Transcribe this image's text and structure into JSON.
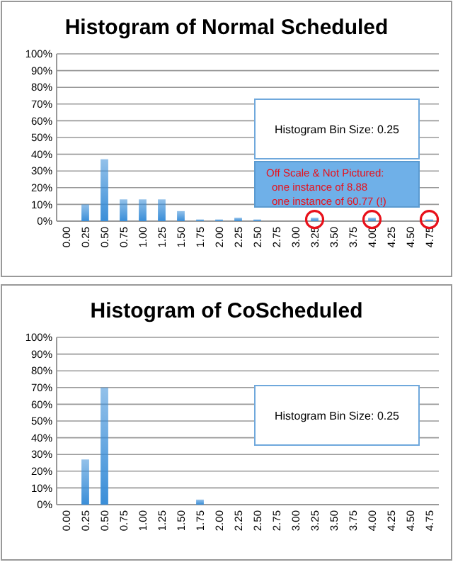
{
  "chart_data": [
    {
      "type": "bar",
      "title": "Histogram of Normal Scheduled",
      "categories": [
        "0.00",
        "0.25",
        "0.50",
        "0.75",
        "1.00",
        "1.25",
        "1.50",
        "1.75",
        "2.00",
        "2.25",
        "2.50",
        "2.75",
        "3.00",
        "3.25",
        "3.50",
        "3.75",
        "4.00",
        "4.25",
        "4.50",
        "4.75"
      ],
      "series": [
        {
          "values": [
            0,
            10,
            37,
            13,
            13,
            13,
            6,
            1,
            1,
            2,
            1,
            0,
            0,
            2,
            0,
            0,
            2,
            0,
            0,
            1
          ],
          "color": "#3a8ed8"
        },
        {
          "type": "scatter",
          "x": [
            "3.25",
            "4.00",
            "4.75"
          ],
          "values": [
            1,
            1,
            1
          ],
          "color": "#e8101a",
          "marker": "circle"
        }
      ],
      "ylim": [
        0,
        100
      ],
      "yticks": [
        {
          "value": 0,
          "label": "0%"
        },
        {
          "value": 10,
          "label": "10%"
        },
        {
          "value": 20,
          "label": "20%"
        },
        {
          "value": 30,
          "label": "30%"
        },
        {
          "value": 40,
          "label": "40%"
        },
        {
          "value": 50,
          "label": "50%"
        },
        {
          "value": 60,
          "label": "60%"
        },
        {
          "value": 70,
          "label": "70%"
        },
        {
          "value": 80,
          "label": "80%"
        },
        {
          "value": 90,
          "label": "90%"
        },
        {
          "value": 100,
          "label": "100%"
        }
      ],
      "grid": "y",
      "annotations": [
        "Histogram Bin Size: 0.25",
        "Off Scale & Not Pictured:\none instance of 8.88\none instance of 60.77 (!)"
      ]
    },
    {
      "type": "bar",
      "title": "Histogram of CoScheduled",
      "categories": [
        "0.00",
        "0.25",
        "0.50",
        "0.75",
        "1.00",
        "1.25",
        "1.50",
        "1.75",
        "2.00",
        "2.25",
        "2.50",
        "2.75",
        "3.00",
        "3.25",
        "3.50",
        "3.75",
        "4.00",
        "4.25",
        "4.50",
        "4.75"
      ],
      "values": [
        0,
        27,
        70,
        0,
        0,
        0,
        0,
        3,
        0,
        0,
        0,
        0,
        0,
        0,
        0,
        0,
        0,
        0,
        0,
        0
      ],
      "color": "#3a8ed8",
      "ylim": [
        0,
        100
      ],
      "yticks": [
        {
          "value": 0,
          "label": "0%"
        },
        {
          "value": 10,
          "label": "10%"
        },
        {
          "value": 20,
          "label": "20%"
        },
        {
          "value": 30,
          "label": "30%"
        },
        {
          "value": 40,
          "label": "40%"
        },
        {
          "value": 50,
          "label": "50%"
        },
        {
          "value": 60,
          "label": "60%"
        },
        {
          "value": 70,
          "label": "70%"
        },
        {
          "value": 80,
          "label": "80%"
        },
        {
          "value": 90,
          "label": "90%"
        },
        {
          "value": 100,
          "label": "100%"
        }
      ],
      "grid": "y",
      "annotations": [
        "Histogram Bin Size: 0.25"
      ]
    }
  ]
}
